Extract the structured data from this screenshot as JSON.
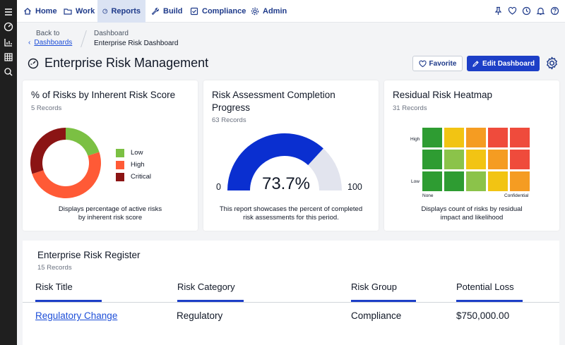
{
  "nav": {
    "items": [
      {
        "label": "Home",
        "icon": "home-icon"
      },
      {
        "label": "Work",
        "icon": "folder-icon"
      },
      {
        "label": "Reports",
        "icon": "gauge-icon"
      },
      {
        "label": "Build",
        "icon": "wrench-icon"
      },
      {
        "label": "Compliance",
        "icon": "checkbox-icon"
      },
      {
        "label": "Admin",
        "icon": "gear-icon"
      }
    ],
    "active": "Reports",
    "right_icons": [
      "pin-icon",
      "heart-icon",
      "history-icon",
      "bell-icon",
      "help-icon"
    ]
  },
  "sidebar_icons": [
    "menu-icon",
    "gauge-icon",
    "chart-icon",
    "table-icon",
    "search-icon"
  ],
  "breadcrumb": {
    "back_label": "Back to",
    "back_link": "Dashboards",
    "parent": "Dashboard",
    "current": "Enterprise Risk Dashboard"
  },
  "page": {
    "title": "Enterprise Risk Management",
    "favorite_label": "Favorite",
    "edit_label": "Edit Dashboard"
  },
  "cards": {
    "donut": {
      "title": "% of Risks by Inherent Risk Score",
      "records": "5 Records",
      "description": [
        "Displays percentage of active risks",
        "by inherent risk score"
      ]
    },
    "gauge": {
      "title": [
        "Risk Assessment Completion",
        "Progress"
      ],
      "records": "63 Records",
      "value_text": "73.7%",
      "min_label": "0",
      "max_label": "100",
      "description": [
        "This report showcases the percent of completed",
        "risk assessments for this period."
      ]
    },
    "heatmap": {
      "title": "Residual Risk Heatmap",
      "records": "31 Records",
      "y_labels": [
        "High",
        "Low"
      ],
      "x_labels": [
        "None",
        "Confidential"
      ],
      "description": [
        "Displays count of risks by residual",
        "impact and likelihood"
      ]
    }
  },
  "chart_data": [
    {
      "type": "pie",
      "variant": "donut",
      "categories": [
        "Low",
        "High",
        "Critical"
      ],
      "values": [
        20,
        50,
        30
      ],
      "colors": [
        "#7bc043",
        "#ff5a36",
        "#8b1414"
      ],
      "legend_position": "right"
    },
    {
      "type": "gauge",
      "value": 73.7,
      "min": 0,
      "max": 100,
      "fill_color": "#0a2fd0",
      "track_color": "#e2e4ee"
    },
    {
      "type": "heatmap",
      "rows": 3,
      "cols": 5,
      "colors": [
        [
          "#2e9c32",
          "#f2c413",
          "#f59c22",
          "#ef4b3c",
          "#ef4b3c"
        ],
        [
          "#2e9c32",
          "#8bc34a",
          "#f2c413",
          "#f59c22",
          "#ef4b3c"
        ],
        [
          "#2e9c32",
          "#2e9c32",
          "#8bc34a",
          "#f2c413",
          "#f59c22"
        ]
      ]
    }
  ],
  "register": {
    "title": "Enterprise Risk Register",
    "records": "15 Records",
    "columns": [
      "Risk Title",
      "Risk Category",
      "Risk Group",
      "Potential Loss"
    ],
    "rows": [
      [
        "Regulatory Change",
        "Regulatory",
        "Compliance",
        "$750,000.00"
      ]
    ]
  }
}
